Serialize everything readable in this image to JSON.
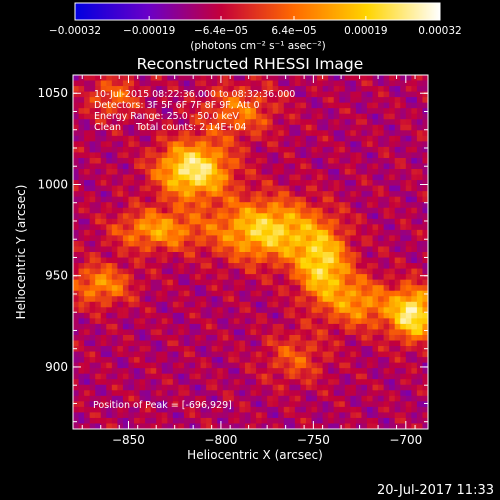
{
  "chart_data": {
    "type": "heatmap",
    "title": "Reconstructed RHESSI Image",
    "xlabel": "Heliocentric X (arcsec)",
    "ylabel": "Heliocentric Y (arcsec)",
    "xlim": [
      -880,
      -688
    ],
    "ylim": [
      866,
      1060
    ],
    "x_ticks": [
      -850,
      -800,
      -750,
      -700
    ],
    "x_tick_labels": [
      "−850",
      "−800",
      "−750",
      "−700"
    ],
    "y_ticks": [
      900,
      950,
      1000,
      1050
    ],
    "y_tick_labels": [
      "900",
      "950",
      "1000",
      "1050"
    ],
    "colorbar": {
      "range": [
        -0.00032,
        0.00032
      ],
      "ticks": [
        -0.00032,
        -0.00019,
        -6.4e-05,
        6.4e-05,
        0.00019,
        0.00032
      ],
      "tick_labels": [
        "−0.00032",
        "−0.00019",
        "−6.4e−05",
        "6.4e−05",
        "0.00019",
        "0.00032"
      ],
      "units_label": "(photons cm⁻² s⁻¹ asec⁻²)",
      "colors": [
        "#0000e0",
        "#6a00c8",
        "#c4003a",
        "#ff6a00",
        "#ffd400",
        "#ffffff"
      ]
    },
    "annotations": [
      "10-Jul-2015 08:22:36.000 to 08:32:36.000",
      "Detectors: 3F 5F 6F 7F 8F 9F, Att 0",
      "Energy Range: 25.0 - 50.0 keV",
      "Clean     Total counts: 2.14E+04"
    ],
    "peak_label": "Position of Peak = [-696,929]",
    "peak": [
      -696,
      929
    ],
    "sources": [
      {
        "x": -815,
        "y": 1008,
        "sx": 14,
        "sy": 11,
        "amp": 1.0
      },
      {
        "x": -775,
        "y": 975,
        "sx": 20,
        "sy": 12,
        "amp": 0.85
      },
      {
        "x": -745,
        "y": 955,
        "sx": 10,
        "sy": 14,
        "amp": 0.8
      },
      {
        "x": -835,
        "y": 975,
        "sx": 16,
        "sy": 8,
        "amp": 0.6
      },
      {
        "x": -865,
        "y": 945,
        "sx": 12,
        "sy": 8,
        "amp": 0.55
      },
      {
        "x": -696,
        "y": 929,
        "sx": 9,
        "sy": 10,
        "amp": 1.0
      },
      {
        "x": -725,
        "y": 935,
        "sx": 12,
        "sy": 10,
        "amp": 0.55
      },
      {
        "x": -790,
        "y": 1040,
        "sx": 14,
        "sy": 10,
        "amp": 0.45
      },
      {
        "x": -858,
        "y": 1048,
        "sx": 10,
        "sy": 8,
        "amp": 0.4
      },
      {
        "x": -760,
        "y": 905,
        "sx": 12,
        "sy": 10,
        "amp": 0.35
      }
    ]
  },
  "footer": {
    "timestamp": "20-Jul-2017 11:33"
  }
}
